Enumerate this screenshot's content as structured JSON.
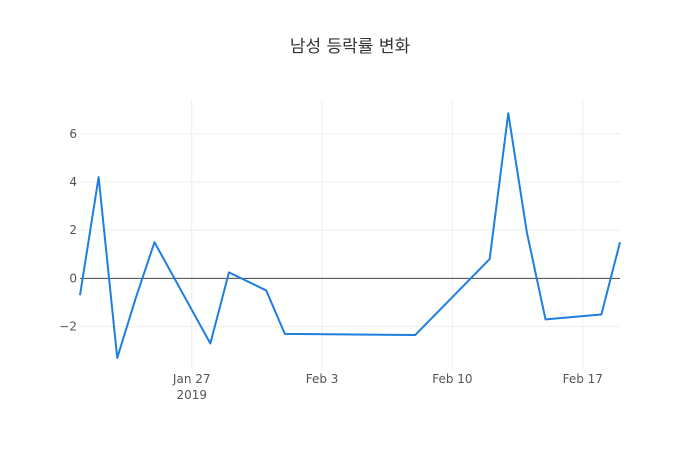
{
  "chart_data": {
    "type": "line",
    "title": "남성 등락률 변화",
    "xlabel": "",
    "ylabel": "",
    "x": [
      "2019-01-21",
      "2019-01-22",
      "2019-01-23",
      "2019-01-24",
      "2019-01-25",
      "2019-01-28",
      "2019-01-29",
      "2019-01-31",
      "2019-02-01",
      "2019-02-08",
      "2019-02-12",
      "2019-02-13",
      "2019-02-14",
      "2019-02-15",
      "2019-02-18",
      "2019-02-19"
    ],
    "series": [
      {
        "values": [
          -0.7,
          4.2,
          -3.3,
          -0.8,
          1.5,
          -2.7,
          0.25,
          -0.5,
          -2.3,
          -2.35,
          0.8,
          6.85,
          1.9,
          -1.7,
          -1.5,
          1.5
        ]
      }
    ],
    "xlim": [
      "2019-01-21",
      "2019-02-19"
    ],
    "ylim": [
      -3.8,
      7.4
    ],
    "x_ticks": [
      {
        "date": "2019-01-27",
        "label": "Jan 27",
        "sublabel": "2019"
      },
      {
        "date": "2019-02-03",
        "label": "Feb 3",
        "sublabel": ""
      },
      {
        "date": "2019-02-10",
        "label": "Feb 10",
        "sublabel": ""
      },
      {
        "date": "2019-02-17",
        "label": "Feb 17",
        "sublabel": ""
      }
    ],
    "y_ticks": [
      {
        "value": -2,
        "label": "−2"
      },
      {
        "value": 0,
        "label": "0"
      },
      {
        "value": 2,
        "label": "2"
      },
      {
        "value": 4,
        "label": "4"
      },
      {
        "value": 6,
        "label": "6"
      }
    ],
    "grid": true,
    "zero_line": true,
    "line_color": "#1f7fe0",
    "grid_color": "#eeeeee",
    "zero_line_color": "#444444"
  }
}
